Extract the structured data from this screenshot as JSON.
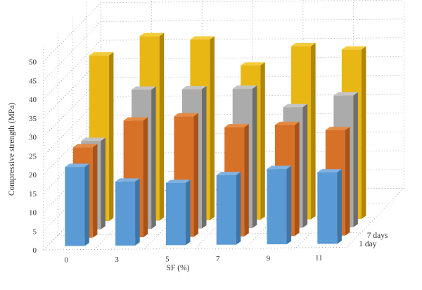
{
  "chart_data": {
    "type": "bar",
    "categories": [
      "0",
      "3",
      "5",
      "7",
      "9",
      "11"
    ],
    "depth_categories": [
      "1 day",
      "7 days",
      "",
      ""
    ],
    "xlabel": "SF (%)",
    "ylabel": "Compressive strength (MPa)",
    "ylim": [
      0,
      50
    ],
    "yticks": [
      0,
      5,
      10,
      15,
      20,
      25,
      30,
      35,
      40,
      45,
      50
    ],
    "grid": true,
    "legend": "none",
    "series": [
      {
        "values": [
          21,
          17,
          16.5,
          18.5,
          20,
          19
        ],
        "color": "#5B9BD5",
        "side_color": "#3E76A8",
        "top_color": "#7FB2E2"
      },
      {
        "values": [
          24,
          31,
          32,
          29,
          29.5,
          28
        ],
        "color": "#D87128",
        "side_color": "#A8531A",
        "top_color": "#E58A45"
      },
      {
        "values": [
          23.5,
          37,
          37,
          37,
          32,
          35
        ],
        "color": "#ABABAB",
        "side_color": "#6E6E6E",
        "top_color": "#C4C4C4"
      },
      {
        "values": [
          44,
          49,
          48,
          41,
          46,
          45
        ],
        "color": "#E9B714",
        "side_color": "#B08608",
        "top_color": "#F3CC3E"
      }
    ]
  }
}
